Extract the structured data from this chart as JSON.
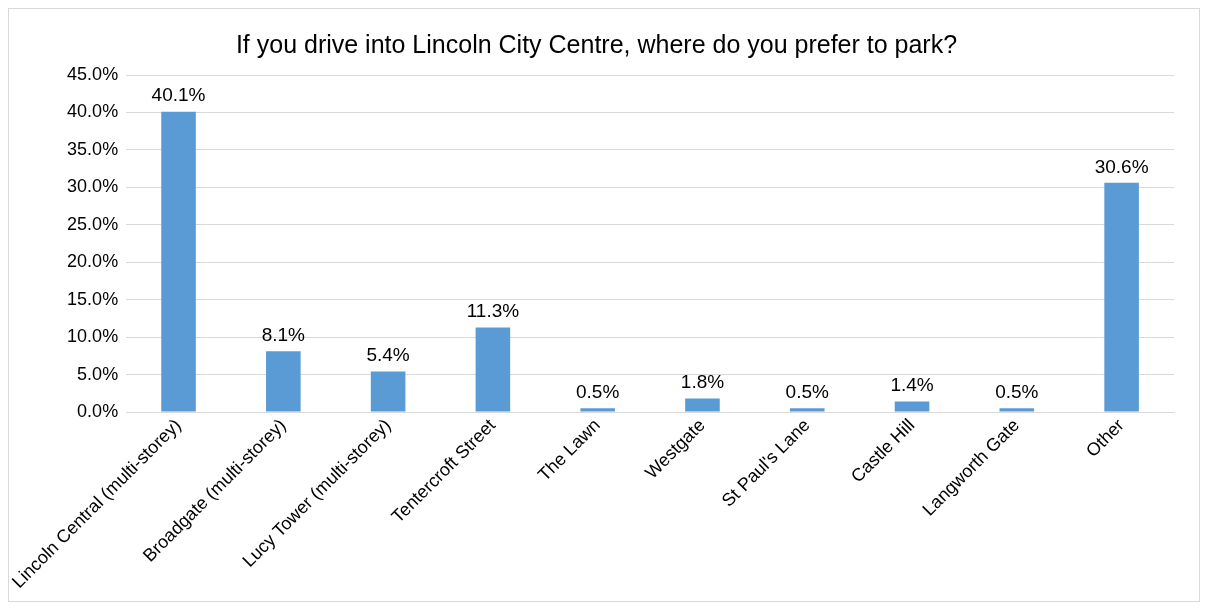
{
  "chart_data": {
    "type": "bar",
    "title": "If you drive into Lincoln City Centre, where do you prefer to park?",
    "categories": [
      "Lincoln Central (multi-storey)",
      "Broadgate (multi-storey)",
      "Lucy Tower (multi-storey)",
      "Tentercroft Street",
      "The Lawn",
      "Westgate",
      "St Paul's Lane",
      "Castle Hill",
      "Langworth Gate",
      "Other"
    ],
    "values": [
      40.1,
      8.1,
      5.4,
      11.3,
      0.5,
      1.8,
      0.5,
      1.4,
      0.5,
      30.6
    ],
    "value_labels": [
      "40.1%",
      "8.1%",
      "5.4%",
      "11.3%",
      "0.5%",
      "1.8%",
      "0.5%",
      "1.4%",
      "0.5%",
      "30.6%"
    ],
    "color": "#5b9bd5",
    "ylim": [
      0,
      45
    ],
    "yticks": [
      {
        "value": 0,
        "label": "0.0%"
      },
      {
        "value": 5,
        "label": "5.0%"
      },
      {
        "value": 10,
        "label": "10.0%"
      },
      {
        "value": 15,
        "label": "15.0%"
      },
      {
        "value": 20,
        "label": "20.0%"
      },
      {
        "value": 25,
        "label": "25.0%"
      },
      {
        "value": 30,
        "label": "30.0%"
      },
      {
        "value": 35,
        "label": "35.0%"
      },
      {
        "value": 40,
        "label": "40.0%"
      },
      {
        "value": 45,
        "label": "45.0%"
      }
    ],
    "grid": "y",
    "legend": false
  }
}
